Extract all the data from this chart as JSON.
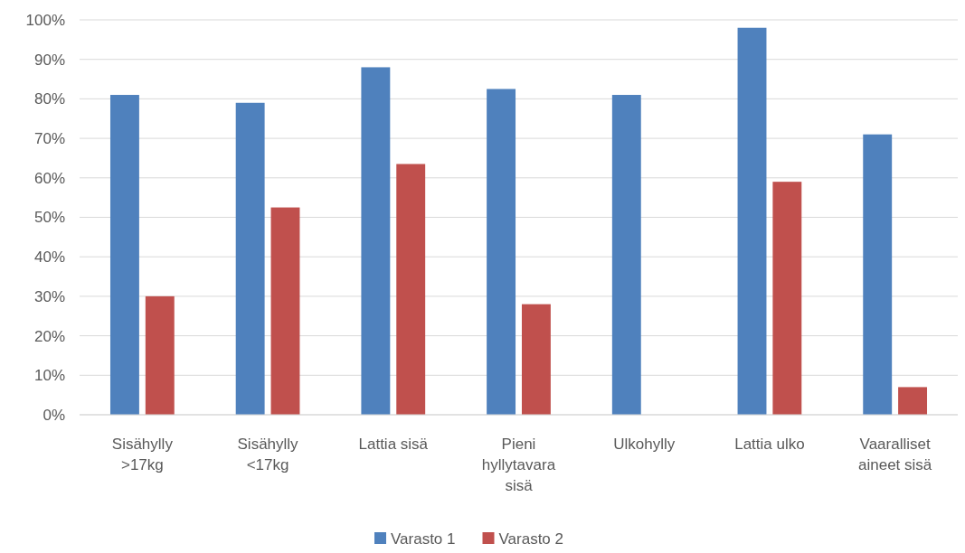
{
  "chart_data": {
    "type": "bar",
    "categories": [
      "Sisähylly >17kg",
      "Sisähylly <17kg",
      "Lattia sisä",
      "Pieni hyllytavara sisä",
      "Ulkohylly",
      "Lattia ulko",
      "Vaaralliset aineet sisä"
    ],
    "series": [
      {
        "name": "Varasto 1",
        "color": "#4f81bd",
        "values": [
          81,
          79,
          88,
          82.5,
          81,
          98,
          71
        ]
      },
      {
        "name": "Varasto 2",
        "color": "#c0504d",
        "values": [
          30,
          52.5,
          63.5,
          28,
          null,
          59,
          7
        ]
      }
    ],
    "ylim": [
      0,
      100
    ],
    "yticks": [
      {
        "value": 0,
        "label": "0%"
      },
      {
        "value": 10,
        "label": "10%"
      },
      {
        "value": 20,
        "label": "20%"
      },
      {
        "value": 30,
        "label": "30%"
      },
      {
        "value": 40,
        "label": "40%"
      },
      {
        "value": 50,
        "label": "50%"
      },
      {
        "value": 60,
        "label": "60%"
      },
      {
        "value": 70,
        "label": "70%"
      },
      {
        "value": 80,
        "label": "80%"
      },
      {
        "value": 90,
        "label": "90%"
      },
      {
        "value": 100,
        "label": "100%"
      }
    ],
    "grid": "y",
    "legend": "bottom"
  }
}
